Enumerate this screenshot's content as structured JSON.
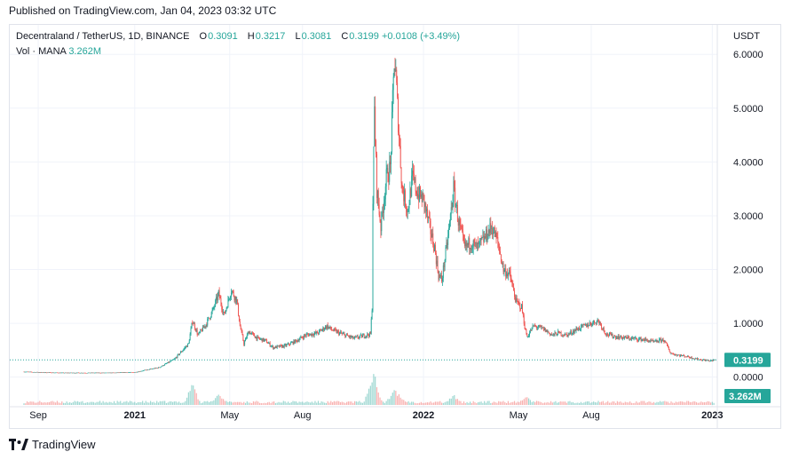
{
  "header": {
    "published": "Published on TradingView.com, Jan 04, 2023 03:32 UTC"
  },
  "legend": {
    "symbol": "Decentraland / TetherUS, 1D, BINANCE",
    "o_label": "O",
    "o_value": "0.3091",
    "h_label": "H",
    "h_value": "0.3217",
    "l_label": "L",
    "l_value": "0.3081",
    "c_label": "C",
    "c_value": "0.3199",
    "change": "+0.0108 (+3.49%)",
    "vol_label": "Vol · MANA",
    "vol_value": "3.262M"
  },
  "footer": {
    "brand": "TradingView"
  },
  "colors": {
    "up": "#26a69a",
    "down": "#ef5350",
    "grid": "#f0f3fa",
    "axis_text": "#131722",
    "price_tag": "#26a69a",
    "logo": "#131722"
  },
  "chart_data": {
    "type": "candlestick",
    "title": "Decentraland / TetherUS, 1D, BINANCE",
    "currency": "USDT",
    "ylim": [
      -0.55,
      6.35
    ],
    "y_ticks": [
      "6.0000",
      "5.0000",
      "4.0000",
      "3.0000",
      "2.0000",
      "1.0000",
      "0.0000"
    ],
    "y_tick_values": [
      6,
      5,
      4,
      3,
      2,
      1,
      0
    ],
    "x_ticks": [
      "Sep",
      "2021",
      "May",
      "Aug",
      "2022",
      "May",
      "Aug",
      "2023"
    ],
    "x_tick_dates": [
      "2020-09-01",
      "2021-01-01",
      "2021-05-01",
      "2021-08-01",
      "2022-01-01",
      "2022-05-01",
      "2022-08-01",
      "2023-01-01"
    ],
    "date_range": [
      "2020-08-14",
      "2023-01-04"
    ],
    "last_price": "0.3199",
    "last_price_value": 0.3199,
    "last_volume": "3.262M",
    "grid": true,
    "close_series": [
      [
        "2020-08-14",
        0.1
      ],
      [
        "2020-09-01",
        0.09
      ],
      [
        "2020-10-01",
        0.08
      ],
      [
        "2020-11-01",
        0.08
      ],
      [
        "2020-12-01",
        0.08
      ],
      [
        "2021-01-01",
        0.09
      ],
      [
        "2021-02-01",
        0.18
      ],
      [
        "2021-02-20",
        0.33
      ],
      [
        "2021-03-10",
        0.62
      ],
      [
        "2021-03-15",
        1.05
      ],
      [
        "2021-03-22",
        0.78
      ],
      [
        "2021-04-01",
        0.98
      ],
      [
        "2021-04-10",
        1.25
      ],
      [
        "2021-04-17",
        1.55
      ],
      [
        "2021-04-24",
        1.15
      ],
      [
        "2021-05-03",
        1.62
      ],
      [
        "2021-05-10",
        1.42
      ],
      [
        "2021-05-14",
        0.95
      ],
      [
        "2021-05-19",
        0.62
      ],
      [
        "2021-05-25",
        0.85
      ],
      [
        "2021-06-05",
        0.72
      ],
      [
        "2021-06-15",
        0.68
      ],
      [
        "2021-06-25",
        0.55
      ],
      [
        "2021-07-10",
        0.58
      ],
      [
        "2021-07-25",
        0.68
      ],
      [
        "2021-08-05",
        0.78
      ],
      [
        "2021-08-20",
        0.82
      ],
      [
        "2021-09-01",
        0.95
      ],
      [
        "2021-09-07",
        0.88
      ],
      [
        "2021-09-20",
        0.8
      ],
      [
        "2021-10-05",
        0.72
      ],
      [
        "2021-10-20",
        0.78
      ],
      [
        "2021-10-26",
        0.8
      ],
      [
        "2021-10-28",
        1.3
      ],
      [
        "2021-10-29",
        3.3
      ],
      [
        "2021-10-31",
        4.95
      ],
      [
        "2021-11-03",
        3.5
      ],
      [
        "2021-11-08",
        2.8
      ],
      [
        "2021-11-15",
        3.7
      ],
      [
        "2021-11-20",
        3.9
      ],
      [
        "2021-11-25",
        5.9
      ],
      [
        "2021-11-27",
        5.6
      ],
      [
        "2021-12-01",
        4.5
      ],
      [
        "2021-12-05",
        3.5
      ],
      [
        "2021-12-12",
        3.1
      ],
      [
        "2021-12-18",
        3.7
      ],
      [
        "2021-12-25",
        3.4
      ],
      [
        "2022-01-01",
        3.3
      ],
      [
        "2022-01-07",
        2.9
      ],
      [
        "2022-01-15",
        2.4
      ],
      [
        "2022-01-20",
        1.9
      ],
      [
        "2022-01-24",
        1.8
      ],
      [
        "2022-02-01",
        2.6
      ],
      [
        "2022-02-08",
        3.5
      ],
      [
        "2022-02-14",
        2.9
      ],
      [
        "2022-02-22",
        2.4
      ],
      [
        "2022-03-01",
        2.5
      ],
      [
        "2022-03-10",
        2.4
      ],
      [
        "2022-03-20",
        2.6
      ],
      [
        "2022-03-28",
        2.8
      ],
      [
        "2022-04-05",
        2.5
      ],
      [
        "2022-04-12",
        2.0
      ],
      [
        "2022-04-20",
        1.9
      ],
      [
        "2022-04-28",
        1.4
      ],
      [
        "2022-05-05",
        1.3
      ],
      [
        "2022-05-10",
        0.85
      ],
      [
        "2022-05-12",
        0.75
      ],
      [
        "2022-05-20",
        0.95
      ],
      [
        "2022-06-01",
        0.9
      ],
      [
        "2022-06-13",
        0.78
      ],
      [
        "2022-06-20",
        0.82
      ],
      [
        "2022-07-01",
        0.78
      ],
      [
        "2022-07-15",
        0.9
      ],
      [
        "2022-08-01",
        1.0
      ],
      [
        "2022-08-10",
        1.05
      ],
      [
        "2022-08-20",
        0.8
      ],
      [
        "2022-09-01",
        0.75
      ],
      [
        "2022-09-20",
        0.72
      ],
      [
        "2022-10-05",
        0.7
      ],
      [
        "2022-10-20",
        0.65
      ],
      [
        "2022-10-31",
        0.7
      ],
      [
        "2022-11-05",
        0.58
      ],
      [
        "2022-11-09",
        0.45
      ],
      [
        "2022-11-15",
        0.42
      ],
      [
        "2022-12-01",
        0.38
      ],
      [
        "2022-12-15",
        0.33
      ],
      [
        "2022-12-30",
        0.3
      ],
      [
        "2023-01-04",
        0.32
      ]
    ],
    "volume_spikes": [
      [
        "2021-03-15",
        0.55
      ],
      [
        "2021-04-17",
        0.3
      ],
      [
        "2021-10-29",
        1.0
      ],
      [
        "2021-10-31",
        0.55
      ],
      [
        "2021-11-25",
        0.45
      ],
      [
        "2021-12-01",
        0.3
      ],
      [
        "2022-02-08",
        0.28
      ],
      [
        "2022-05-10",
        0.25
      ]
    ]
  }
}
